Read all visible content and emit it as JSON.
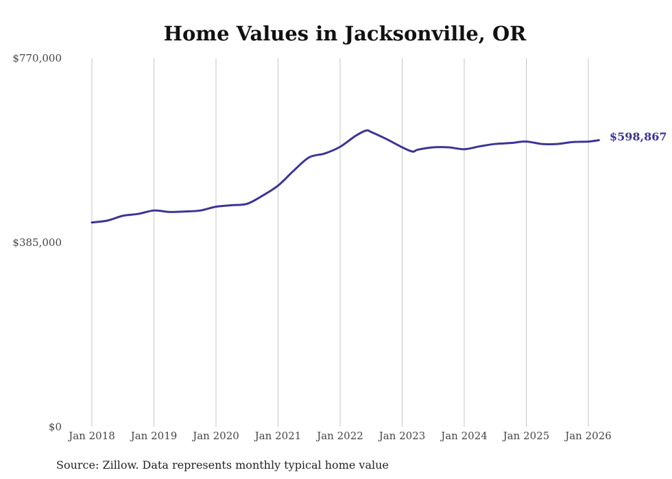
{
  "chart_data": {
    "type": "line",
    "title": "Home Values in Jacksonville, OR",
    "xlabel": "",
    "ylabel": "",
    "ylim": [
      0,
      770000
    ],
    "y_ticks": [
      {
        "value": 0,
        "label": "$0"
      },
      {
        "value": 385000,
        "label": "$385,000"
      },
      {
        "value": 770000,
        "label": "$770,000"
      }
    ],
    "x_ticks": [
      {
        "value": 2018,
        "label": "Jan 2018"
      },
      {
        "value": 2019,
        "label": "Jan 2019"
      },
      {
        "value": 2020,
        "label": "Jan 2020"
      },
      {
        "value": 2021,
        "label": "Jan 2021"
      },
      {
        "value": 2022,
        "label": "Jan 2022"
      },
      {
        "value": 2023,
        "label": "Jan 2023"
      },
      {
        "value": 2024,
        "label": "Jan 2024"
      },
      {
        "value": 2025,
        "label": "Jan 2025"
      },
      {
        "value": 2026,
        "label": "Jan 2026"
      }
    ],
    "xlim": [
      2018,
      2026.2
    ],
    "grid": "vertical",
    "series": [
      {
        "name": "Typical home value",
        "color": "#3b3396",
        "x": [
          2018.0,
          2018.25,
          2018.5,
          2018.75,
          2019.0,
          2019.25,
          2019.5,
          2019.75,
          2020.0,
          2020.25,
          2020.5,
          2020.75,
          2021.0,
          2021.25,
          2021.5,
          2021.75,
          2022.0,
          2022.25,
          2022.42,
          2022.5,
          2022.75,
          2023.0,
          2023.17,
          2023.25,
          2023.5,
          2023.75,
          2024.0,
          2024.25,
          2024.5,
          2024.75,
          2025.0,
          2025.25,
          2025.5,
          2025.75,
          2026.0,
          2026.17
        ],
        "values": [
          427000,
          431000,
          441000,
          445000,
          452000,
          449000,
          450000,
          452000,
          460000,
          463000,
          466000,
          483000,
          504000,
          535000,
          563000,
          571000,
          585000,
          608000,
          619000,
          616000,
          601000,
          584000,
          575000,
          579000,
          584000,
          584000,
          580000,
          586000,
          591000,
          593000,
          596000,
          591000,
          591000,
          595000,
          596000,
          598867
        ]
      }
    ],
    "end_label": "$598,867",
    "source": "Source: Zillow. Data represents monthly typical home value"
  }
}
